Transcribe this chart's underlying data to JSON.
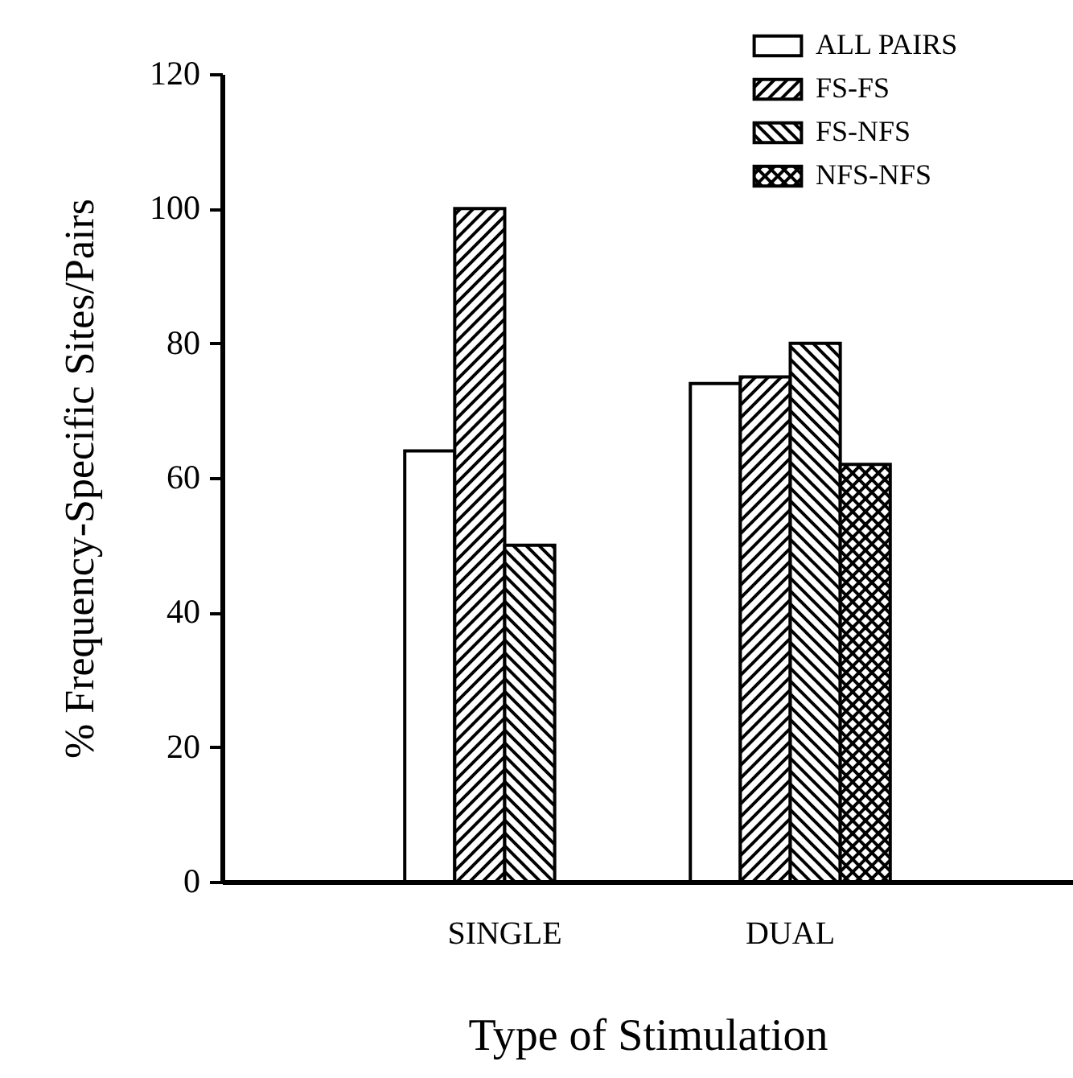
{
  "chart_data": {
    "type": "bar",
    "xlabel": "Type of Stimulation",
    "ylabel": "% Frequency-Specific Sites/Pairs",
    "categories": [
      "SINGLE",
      "DUAL"
    ],
    "series": [
      {
        "name": "ALL PAIRS",
        "color": "#ffffff",
        "values": [
          64,
          74
        ]
      },
      {
        "name": "FS-FS",
        "color": "#000000",
        "values": [
          100,
          75
        ]
      },
      {
        "name": "FS-NFS",
        "color": "#000000",
        "values": [
          50,
          80
        ]
      },
      {
        "name": "NFS-NFS",
        "color": "#000000",
        "values": [
          null,
          62
        ]
      }
    ],
    "ylim": [
      0,
      120
    ],
    "yticks": [
      0,
      20,
      40,
      60,
      80,
      100,
      120
    ],
    "grid": false,
    "legend": "top right"
  }
}
